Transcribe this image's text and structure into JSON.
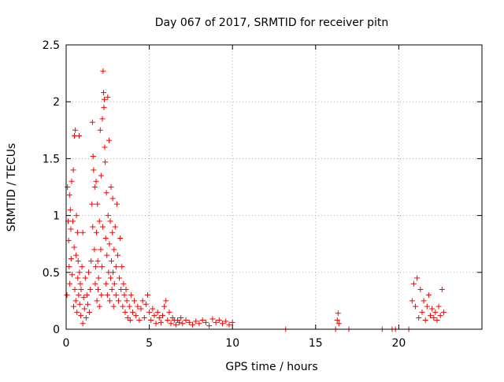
{
  "chart_data": {
    "type": "scatter",
    "title": "Day 067 of 2017, SRMTID for receiver pitn",
    "xlabel": "GPS time / hours",
    "ylabel": "SRMTID / TECUs",
    "xlim": [
      0,
      25
    ],
    "ylim": [
      0,
      2.5
    ],
    "xticks": [
      0,
      5,
      10,
      15,
      20
    ],
    "yticks": [
      0,
      0.5,
      1,
      1.5,
      2,
      2.5
    ],
    "xtick_labels": [
      "0",
      "5",
      "10",
      "15",
      "20"
    ],
    "ytick_labels": [
      "0",
      "0.5",
      "1",
      "1.5",
      "2",
      "2.5"
    ],
    "grid": true,
    "marker": "+",
    "color": "#ff0000",
    "series": [
      {
        "name": "SRMTID",
        "points": [
          [
            0.05,
            0.3
          ],
          [
            0.08,
            1.25
          ],
          [
            0.12,
            0.95
          ],
          [
            0.15,
            0.78
          ],
          [
            0.18,
            0.55
          ],
          [
            0.2,
            1.18
          ],
          [
            0.22,
            0.4
          ],
          [
            0.25,
            1.05
          ],
          [
            0.28,
            0.88
          ],
          [
            0.3,
            0.62
          ],
          [
            0.33,
            1.3
          ],
          [
            0.36,
            0.48
          ],
          [
            0.4,
            0.95
          ],
          [
            0.43,
            1.4
          ],
          [
            0.45,
            0.2
          ],
          [
            0.48,
            0.72
          ],
          [
            0.5,
            1.7
          ],
          [
            0.52,
            0.35
          ],
          [
            0.55,
            1.75
          ],
          [
            0.58,
            0.25
          ],
          [
            0.6,
            0.65
          ],
          [
            0.62,
            1.0
          ],
          [
            0.65,
            0.15
          ],
          [
            0.68,
            0.85
          ],
          [
            0.7,
            0.45
          ],
          [
            0.72,
            0.6
          ],
          [
            0.75,
            0.3
          ],
          [
            0.78,
            1.7
          ],
          [
            0.8,
            0.5
          ],
          [
            0.82,
            0.22
          ],
          [
            0.85,
            0.4
          ],
          [
            0.88,
            0.12
          ],
          [
            0.9,
            0.35
          ],
          [
            0.95,
            0.55
          ],
          [
            1.0,
            0.85
          ],
          [
            1.0,
            0.05
          ],
          [
            1.05,
            0.28
          ],
          [
            1.1,
            0.18
          ],
          [
            1.15,
            0.45
          ],
          [
            1.2,
            0.1
          ],
          [
            1.25,
            0.3
          ],
          [
            1.3,
            0.22
          ],
          [
            1.35,
            0.5
          ],
          [
            1.4,
            0.15
          ],
          [
            1.45,
            0.35
          ],
          [
            1.5,
            0.6
          ],
          [
            1.55,
            1.1
          ],
          [
            1.58,
            1.82
          ],
          [
            1.6,
            0.9
          ],
          [
            1.62,
            1.52
          ],
          [
            1.65,
            1.4
          ],
          [
            1.7,
            0.7
          ],
          [
            1.72,
            1.25
          ],
          [
            1.75,
            0.4
          ],
          [
            1.78,
            0.55
          ],
          [
            1.8,
            1.3
          ],
          [
            1.82,
            0.85
          ],
          [
            1.85,
            0.25
          ],
          [
            1.88,
            1.1
          ],
          [
            1.9,
            0.6
          ],
          [
            1.92,
            0.35
          ],
          [
            1.95,
            0.45
          ],
          [
            2.0,
            0.95
          ],
          [
            2.0,
            0.2
          ],
          [
            2.05,
            1.75
          ],
          [
            2.08,
            0.7
          ],
          [
            2.1,
            1.35
          ],
          [
            2.12,
            0.3
          ],
          [
            2.15,
            0.55
          ],
          [
            2.18,
            1.85
          ],
          [
            2.2,
            0.9
          ],
          [
            2.22,
            2.27
          ],
          [
            2.25,
            2.08
          ],
          [
            2.27,
            1.95
          ],
          [
            2.3,
            2.02
          ],
          [
            2.32,
            1.6
          ],
          [
            2.35,
            1.47
          ],
          [
            2.38,
            0.8
          ],
          [
            2.4,
            0.4
          ],
          [
            2.42,
            1.2
          ],
          [
            2.45,
            0.65
          ],
          [
            2.48,
            0.3
          ],
          [
            2.5,
            2.04
          ],
          [
            2.52,
            1.0
          ],
          [
            2.55,
            0.5
          ],
          [
            2.58,
            1.66
          ],
          [
            2.6,
            0.75
          ],
          [
            2.62,
            0.25
          ],
          [
            2.65,
            0.95
          ],
          [
            2.68,
            0.45
          ],
          [
            2.7,
            1.25
          ],
          [
            2.72,
            0.6
          ],
          [
            2.75,
            0.35
          ],
          [
            2.78,
            0.85
          ],
          [
            2.8,
            1.15
          ],
          [
            2.82,
            0.5
          ],
          [
            2.85,
            0.2
          ],
          [
            2.88,
            0.7
          ],
          [
            2.9,
            0.4
          ],
          [
            2.95,
            0.9
          ],
          [
            3.0,
            0.55
          ],
          [
            3.0,
            0.3
          ],
          [
            3.05,
            1.1
          ],
          [
            3.1,
            0.65
          ],
          [
            3.15,
            0.25
          ],
          [
            3.2,
            0.45
          ],
          [
            3.25,
            0.8
          ],
          [
            3.3,
            0.35
          ],
          [
            3.35,
            0.55
          ],
          [
            3.4,
            0.2
          ],
          [
            3.45,
            0.4
          ],
          [
            3.5,
            0.3
          ],
          [
            3.55,
            0.15
          ],
          [
            3.6,
            0.35
          ],
          [
            3.65,
            0.25
          ],
          [
            3.7,
            0.1
          ],
          [
            3.8,
            0.2
          ],
          [
            3.85,
            0.08
          ],
          [
            3.9,
            0.3
          ],
          [
            4.0,
            0.15
          ],
          [
            4.1,
            0.25
          ],
          [
            4.2,
            0.12
          ],
          [
            4.3,
            0.2
          ],
          [
            4.4,
            0.08
          ],
          [
            4.5,
            0.18
          ],
          [
            4.6,
            0.25
          ],
          [
            4.7,
            0.1
          ],
          [
            4.8,
            0.22
          ],
          [
            4.9,
            0.3
          ],
          [
            5.0,
            0.15
          ],
          [
            5.1,
            0.08
          ],
          [
            5.2,
            0.18
          ],
          [
            5.3,
            0.12
          ],
          [
            5.4,
            0.05
          ],
          [
            5.5,
            0.15
          ],
          [
            5.6,
            0.1
          ],
          [
            5.7,
            0.06
          ],
          [
            5.8,
            0.12
          ],
          [
            5.9,
            0.2
          ],
          [
            6.0,
            0.25
          ],
          [
            6.1,
            0.08
          ],
          [
            6.2,
            0.15
          ],
          [
            6.3,
            0.05
          ],
          [
            6.4,
            0.1
          ],
          [
            6.5,
            0.08
          ],
          [
            6.6,
            0.04
          ],
          [
            6.7,
            0.08
          ],
          [
            6.8,
            0.06
          ],
          [
            6.9,
            0.1
          ],
          [
            7.0,
            0.05
          ],
          [
            7.2,
            0.08
          ],
          [
            7.4,
            0.06
          ],
          [
            7.6,
            0.04
          ],
          [
            7.8,
            0.07
          ],
          [
            8.0,
            0.05
          ],
          [
            8.2,
            0.08
          ],
          [
            8.4,
            0.06
          ],
          [
            8.6,
            0.03
          ],
          [
            8.8,
            0.09
          ],
          [
            9.0,
            0.06
          ],
          [
            9.2,
            0.08
          ],
          [
            9.4,
            0.05
          ],
          [
            9.6,
            0.07
          ],
          [
            9.8,
            0.04
          ],
          [
            10.0,
            0.06
          ],
          [
            13.2,
            0.0
          ],
          [
            16.2,
            0.0
          ],
          [
            16.3,
            0.08
          ],
          [
            16.35,
            0.14
          ],
          [
            16.4,
            0.05
          ],
          [
            17.0,
            0.0
          ],
          [
            19.0,
            0.0
          ],
          [
            19.6,
            0.0
          ],
          [
            19.8,
            0.0
          ],
          [
            20.6,
            0.0
          ],
          [
            20.8,
            0.25
          ],
          [
            20.9,
            0.4
          ],
          [
            21.0,
            0.2
          ],
          [
            21.1,
            0.45
          ],
          [
            21.2,
            0.1
          ],
          [
            21.3,
            0.35
          ],
          [
            21.4,
            0.15
          ],
          [
            21.5,
            0.25
          ],
          [
            21.6,
            0.08
          ],
          [
            21.7,
            0.2
          ],
          [
            21.8,
            0.3
          ],
          [
            21.9,
            0.12
          ],
          [
            22.0,
            0.18
          ],
          [
            22.1,
            0.1
          ],
          [
            22.2,
            0.15
          ],
          [
            22.3,
            0.08
          ],
          [
            22.4,
            0.2
          ],
          [
            22.5,
            0.12
          ],
          [
            22.6,
            0.35
          ],
          [
            22.7,
            0.15
          ]
        ]
      }
    ]
  }
}
